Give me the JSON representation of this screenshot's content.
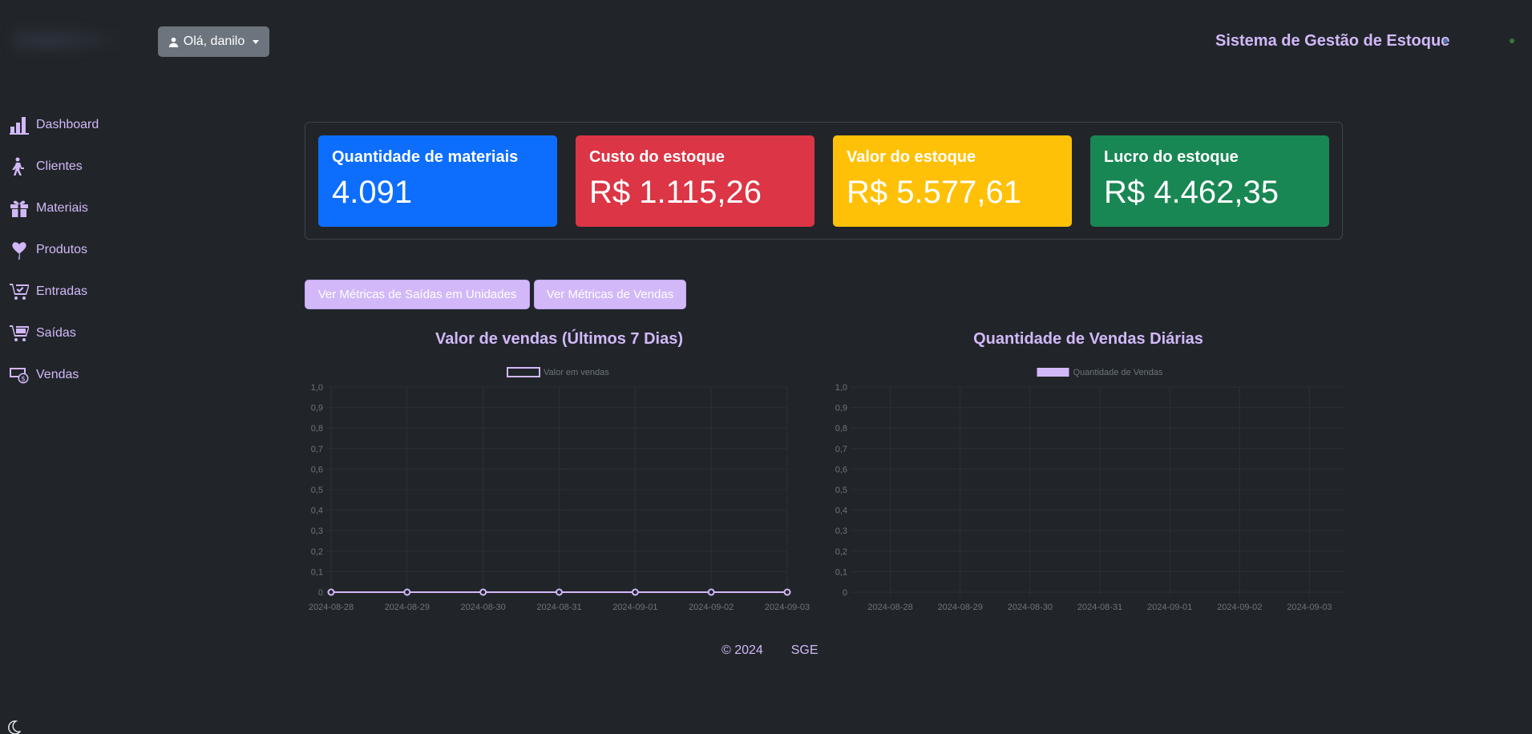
{
  "header": {
    "user_button": "Olá, danilo",
    "app_title": "Sistema de Gestão de Estoque"
  },
  "sidebar": {
    "items": [
      {
        "label": "Dashboard",
        "icon": "chart-bar-icon"
      },
      {
        "label": "Clientes",
        "icon": "person-walking-icon"
      },
      {
        "label": "Materiais",
        "icon": "gift-icon"
      },
      {
        "label": "Produtos",
        "icon": "heart-balloon-icon"
      },
      {
        "label": "Entradas",
        "icon": "cart-check-icon"
      },
      {
        "label": "Saídas",
        "icon": "cart-icon"
      },
      {
        "label": "Vendas",
        "icon": "money-icon"
      }
    ]
  },
  "cards": [
    {
      "title": "Quantidade de materiais",
      "value": "4.091",
      "color": "#0d6efd"
    },
    {
      "title": "Custo do estoque",
      "value": "R$ 1.115,26",
      "color": "#dc3545"
    },
    {
      "title": "Valor do estoque",
      "value": "R$ 5.577,61",
      "color": "#ffc107"
    },
    {
      "title": "Lucro do estoque",
      "value": "R$ 4.462,35",
      "color": "#198754"
    }
  ],
  "buttons": {
    "saidas_metrics": "Ver Métricas de Saídas em Unidades",
    "vendas_metrics": "Ver Métricas de Vendas"
  },
  "chart_data": [
    {
      "type": "line",
      "title": "Valor de vendas (Últimos 7 Dias)",
      "x": [
        "2024-08-28",
        "2024-08-29",
        "2024-08-30",
        "2024-08-31",
        "2024-09-01",
        "2024-09-02",
        "2024-09-03"
      ],
      "series": [
        {
          "name": "Valor em vendas",
          "values": [
            0,
            0,
            0,
            0,
            0,
            0,
            0
          ]
        }
      ],
      "ylim": [
        0,
        1
      ],
      "yticks": [
        "0",
        "0,1",
        "0,2",
        "0,3",
        "0,4",
        "0,5",
        "0,6",
        "0,7",
        "0,8",
        "0,9",
        "1,0"
      ],
      "legend": "top",
      "grid": true,
      "color": "#d2b8f9"
    },
    {
      "type": "bar",
      "title": "Quantidade de Vendas Diárias",
      "categories": [
        "2024-08-28",
        "2024-08-29",
        "2024-08-30",
        "2024-08-31",
        "2024-09-01",
        "2024-09-02",
        "2024-09-03"
      ],
      "series": [
        {
          "name": "Quantidade de Vendas",
          "values": [
            0,
            0,
            0,
            0,
            0,
            0,
            0
          ]
        }
      ],
      "ylim": [
        0,
        1
      ],
      "yticks": [
        "0",
        "0,1",
        "0,2",
        "0,3",
        "0,4",
        "0,5",
        "0,6",
        "0,7",
        "0,8",
        "0,9",
        "1,0"
      ],
      "legend": "top",
      "grid": true,
      "color": "#d2b8f9"
    }
  ],
  "footer": {
    "copyright": "© 2024",
    "brand": "SGE"
  }
}
